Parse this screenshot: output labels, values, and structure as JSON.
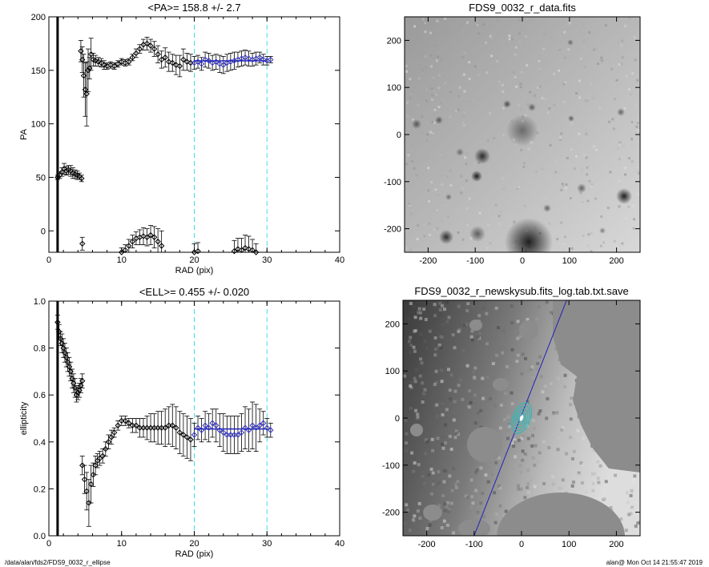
{
  "footer": {
    "path": "/data/alan/fds2/FDS9_0032_r_ellipse",
    "stamp": "alan@  Mon Oct 14 21:55:47 2019"
  },
  "colors": {
    "background": "#ffffff",
    "fit_line": "#2222bb",
    "fit_markers": "#3333cc",
    "guide_lines": "#44dddd",
    "contours": "#39b5b5"
  },
  "chart_data": [
    {
      "id": "pa",
      "type": "scatter",
      "title": "<PA>= 158.8 +/-   2.7",
      "xlabel": "RAD (pix)",
      "ylabel": "PA",
      "xlim": [
        0,
        40
      ],
      "ylim": [
        -20,
        200
      ],
      "xticks": [
        0,
        10,
        20,
        30,
        40
      ],
      "yticks": [
        0,
        50,
        100,
        150,
        200
      ],
      "vertical_marker": 1.2,
      "guides": [
        20,
        30
      ],
      "fit": {
        "x": [
          20,
          30
        ],
        "y": [
          158.8,
          158.8
        ]
      },
      "series": [
        {
          "x": [
            1.2,
            1.5,
            1.8,
            2.1,
            2.4,
            2.7,
            3.0,
            3.3,
            3.6,
            3.9,
            4.2,
            4.5
          ],
          "y": [
            50,
            52,
            55,
            58,
            56,
            57,
            56,
            54,
            53,
            52,
            51,
            49
          ],
          "err": [
            2,
            3,
            4,
            5,
            4,
            4,
            5,
            5,
            4,
            4,
            3,
            3
          ]
        },
        {
          "x": [
            4.4,
            4.6,
            4.8,
            5.0,
            5.2,
            5.4,
            5.6,
            5.8,
            6.1,
            6.4,
            6.8,
            7.2,
            7.6,
            8.0,
            8.5,
            9.0,
            9.5,
            10.0,
            10.5,
            11.0,
            11.5,
            12.0,
            12.5,
            13.0,
            13.5,
            14.0,
            14.5,
            15.0,
            15.5,
            16.0,
            16.5,
            17.0,
            17.5,
            18.0,
            18.5,
            19.0,
            19.5
          ],
          "y": [
            168,
            160,
            145,
            132,
            128,
            150,
            152,
            165,
            160,
            159,
            158,
            157,
            155,
            154,
            155,
            154,
            156,
            158,
            157,
            158,
            162,
            166,
            170,
            174,
            175,
            173,
            170,
            165,
            160,
            162,
            158,
            157,
            155,
            154,
            160,
            158,
            157
          ],
          "err": [
            10,
            12,
            20,
            25,
            30,
            20,
            10,
            15,
            6,
            5,
            4,
            4,
            4,
            3,
            3,
            3,
            3,
            3,
            3,
            3,
            3,
            4,
            4,
            5,
            6,
            6,
            7,
            8,
            8,
            9,
            9,
            8,
            9,
            10,
            10,
            8,
            8
          ]
        },
        {
          "x": [
            20.0,
            20.5,
            21.0,
            21.5,
            22.0,
            22.5,
            23.0,
            23.5,
            24.0,
            24.5,
            25.0,
            25.5,
            26.0,
            26.5,
            27.0,
            27.5,
            28.0,
            28.5,
            29.0,
            29.5,
            30.0,
            30.5
          ],
          "y": [
            157,
            158,
            156,
            160,
            159,
            157,
            158,
            156,
            155,
            157,
            158,
            159,
            160,
            161,
            162,
            161,
            160,
            161,
            162,
            160,
            159,
            160
          ],
          "err": [
            6,
            6,
            6,
            7,
            7,
            7,
            7,
            8,
            8,
            8,
            8,
            8,
            7,
            7,
            7,
            7,
            6,
            6,
            5,
            5,
            4,
            3
          ]
        },
        {
          "x": [
            4.6,
            10.0,
            10.5,
            11.0,
            11.5,
            12.0,
            12.5,
            13.0,
            13.5,
            14.0,
            14.5,
            15.0,
            15.5,
            20.0,
            20.5,
            25.5,
            26.0,
            26.5,
            27.0,
            27.5,
            28.0,
            28.5
          ],
          "y": [
            -12,
            -20,
            -18,
            -14,
            -10,
            -7,
            -6,
            -5,
            -6,
            -4,
            -6,
            -10,
            -14,
            -20,
            -19,
            -19,
            -17,
            -18,
            -16,
            -17,
            -18,
            -20
          ],
          "err": [
            6,
            4,
            5,
            6,
            6,
            6,
            7,
            8,
            8,
            9,
            10,
            12,
            14,
            8,
            8,
            10,
            10,
            11,
            12,
            12,
            10,
            8
          ]
        }
      ]
    },
    {
      "id": "ell",
      "type": "scatter",
      "title": "<ELL>= 0.455 +/-  0.020",
      "xlabel": "RAD (pix)",
      "ylabel": "ellipticity",
      "xlim": [
        0,
        40
      ],
      "ylim": [
        0,
        1.0
      ],
      "xticks": [
        0,
        10,
        20,
        30,
        40
      ],
      "yticks": [
        0,
        0.2,
        0.4,
        0.6,
        0.8,
        1.0
      ],
      "vertical_marker": 1.2,
      "guides": [
        20,
        30
      ],
      "fit": {
        "x": [
          20,
          30
        ],
        "y": [
          0.455,
          0.455
        ]
      },
      "series": [
        {
          "x": [
            1.2,
            1.4,
            1.6,
            1.8,
            2.0,
            2.2,
            2.4,
            2.6,
            2.8,
            3.0,
            3.2,
            3.4,
            3.6,
            3.8,
            4.0,
            4.2,
            4.4,
            4.6
          ],
          "y": [
            0.91,
            0.87,
            0.84,
            0.82,
            0.8,
            0.78,
            0.76,
            0.74,
            0.72,
            0.7,
            0.67,
            0.65,
            0.63,
            0.6,
            0.61,
            0.62,
            0.64,
            0.66
          ],
          "err": [
            0.03,
            0.03,
            0.03,
            0.04,
            0.04,
            0.04,
            0.04,
            0.04,
            0.04,
            0.04,
            0.04,
            0.04,
            0.04,
            0.03,
            0.03,
            0.03,
            0.03,
            0.03
          ]
        },
        {
          "x": [
            4.6,
            4.9,
            5.2,
            5.5,
            5.8,
            6.1,
            6.4,
            6.7,
            7.0,
            7.4,
            7.8,
            8.2,
            8.6,
            9.0,
            9.5,
            10.0,
            10.5,
            11.0,
            11.5,
            12.0,
            12.5,
            13.0,
            13.5,
            14.0,
            14.5,
            15.0,
            15.5,
            16.0,
            16.5,
            17.0,
            17.5,
            18.0,
            18.5,
            19.0,
            19.5
          ],
          "y": [
            0.3,
            0.24,
            0.19,
            0.14,
            0.22,
            0.26,
            0.3,
            0.32,
            0.33,
            0.34,
            0.37,
            0.4,
            0.42,
            0.44,
            0.47,
            0.49,
            0.49,
            0.48,
            0.47,
            0.47,
            0.46,
            0.46,
            0.46,
            0.46,
            0.46,
            0.46,
            0.46,
            0.46,
            0.47,
            0.47,
            0.46,
            0.44,
            0.43,
            0.42,
            0.41
          ],
          "err": [
            0.04,
            0.06,
            0.08,
            0.1,
            0.08,
            0.05,
            0.04,
            0.03,
            0.03,
            0.03,
            0.03,
            0.03,
            0.03,
            0.02,
            0.02,
            0.02,
            0.02,
            0.02,
            0.03,
            0.03,
            0.04,
            0.04,
            0.05,
            0.06,
            0.06,
            0.07,
            0.07,
            0.08,
            0.08,
            0.09,
            0.09,
            0.09,
            0.09,
            0.09,
            0.09
          ]
        },
        {
          "x": [
            20.0,
            20.5,
            21.0,
            21.5,
            22.0,
            22.5,
            23.0,
            23.5,
            24.0,
            24.5,
            25.0,
            25.5,
            26.0,
            26.5,
            27.0,
            27.5,
            28.0,
            28.5,
            29.0,
            29.5,
            30.0,
            30.5
          ],
          "y": [
            0.43,
            0.46,
            0.45,
            0.47,
            0.46,
            0.48,
            0.47,
            0.45,
            0.44,
            0.43,
            0.43,
            0.43,
            0.43,
            0.44,
            0.46,
            0.45,
            0.47,
            0.46,
            0.47,
            0.48,
            0.46,
            0.45
          ],
          "err": [
            0.05,
            0.05,
            0.05,
            0.06,
            0.06,
            0.06,
            0.07,
            0.07,
            0.08,
            0.08,
            0.08,
            0.08,
            0.08,
            0.08,
            0.09,
            0.09,
            0.1,
            0.1,
            0.07,
            0.05,
            0.04,
            0.03
          ]
        }
      ]
    },
    {
      "id": "img-data",
      "type": "heatmap",
      "title": "FDS9_0032_r_data.fits",
      "xlim": [
        -250,
        250
      ],
      "ylim": [
        -250,
        250
      ],
      "xticks": [
        -200,
        -100,
        0,
        100,
        200
      ],
      "yticks": [
        -200,
        -100,
        0,
        100,
        200
      ]
    },
    {
      "id": "img-sky",
      "type": "heatmap",
      "title": "FDS9_0032_r_newskysub.fits_log.tab.txt.save",
      "xlim": [
        -250,
        250
      ],
      "ylim": [
        -250,
        250
      ],
      "xticks": [
        -200,
        -100,
        0,
        100,
        200
      ],
      "yticks": [
        -200,
        -100,
        0,
        100,
        200
      ]
    }
  ]
}
